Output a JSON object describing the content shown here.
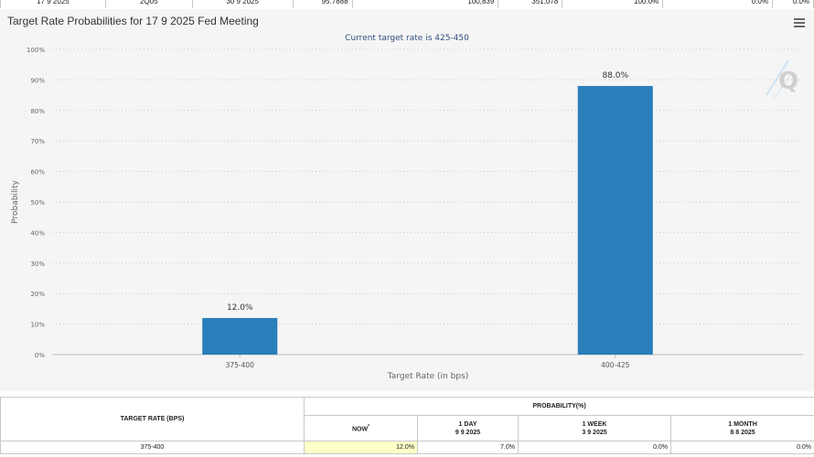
{
  "top_row": [
    "17 9 2025",
    "2Q05",
    "30 9 2025",
    "95.7888",
    "100,839",
    "351,078",
    "100.0%",
    "0.0%",
    "0.0%"
  ],
  "chart": {
    "title": "Target Rate Probabilities for 17 9 2025 Fed Meeting",
    "subtitle": "Current target rate is 425-450",
    "menu_icon": "hamburger-menu-icon",
    "watermark_icon": "q-logo-icon",
    "bar_color": "#2a7fba",
    "plot_background": "#f5f5f5"
  },
  "chart_data": {
    "type": "bar",
    "title": "Target Rate Probabilities for 17 9 2025 Fed Meeting",
    "subtitle": "Current target rate is 425-450",
    "xlabel": "Target Rate (in bps)",
    "ylabel": "Probability",
    "categories": [
      "375-400",
      "400-425"
    ],
    "values": [
      12.0,
      88.0
    ],
    "data_labels": [
      "12.0%",
      "88.0%"
    ],
    "ylim": [
      0,
      100
    ],
    "yticks": [
      "0%",
      "10%",
      "20%",
      "30%",
      "40%",
      "50%",
      "60%",
      "70%",
      "80%",
      "90%",
      "100%"
    ],
    "grid": true,
    "legend": "none"
  },
  "table": {
    "target_rate_header": "TARGET RATE (BPS)",
    "probability_header": "PROBABILITY(%)",
    "columns": [
      {
        "label": "NOW",
        "marker": "*",
        "date": ""
      },
      {
        "label": "1 DAY",
        "date": "9 9 2025"
      },
      {
        "label": "1 WEEK",
        "date": "3 9 2025"
      },
      {
        "label": "1 MONTH",
        "date": "8 8 2025"
      }
    ],
    "rows": [
      {
        "rate": "375-400",
        "now": "12.0%",
        "day": "7.0%",
        "week": "0.0%",
        "month": "0.0%"
      }
    ]
  }
}
